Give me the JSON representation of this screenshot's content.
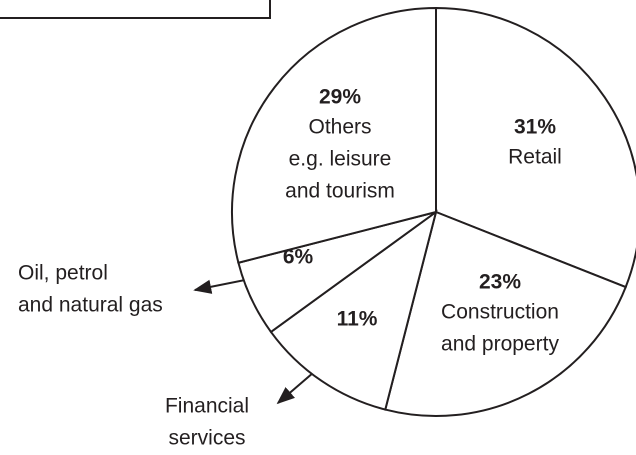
{
  "chart_data": {
    "type": "pie",
    "categories": [
      [
        "Retail"
      ],
      [
        "Construction",
        "and property"
      ],
      [
        "Financial",
        "services"
      ],
      [
        "Oil, petrol",
        "and natural gas"
      ],
      [
        "Others",
        "e.g. leisure",
        "and tourism"
      ]
    ],
    "values": [
      31,
      23,
      11,
      6,
      29
    ],
    "value_labels": [
      "31%",
      "23%",
      "11%",
      "6%",
      "29%"
    ],
    "color": "#ffffff",
    "edge_color": "#231f20"
  }
}
